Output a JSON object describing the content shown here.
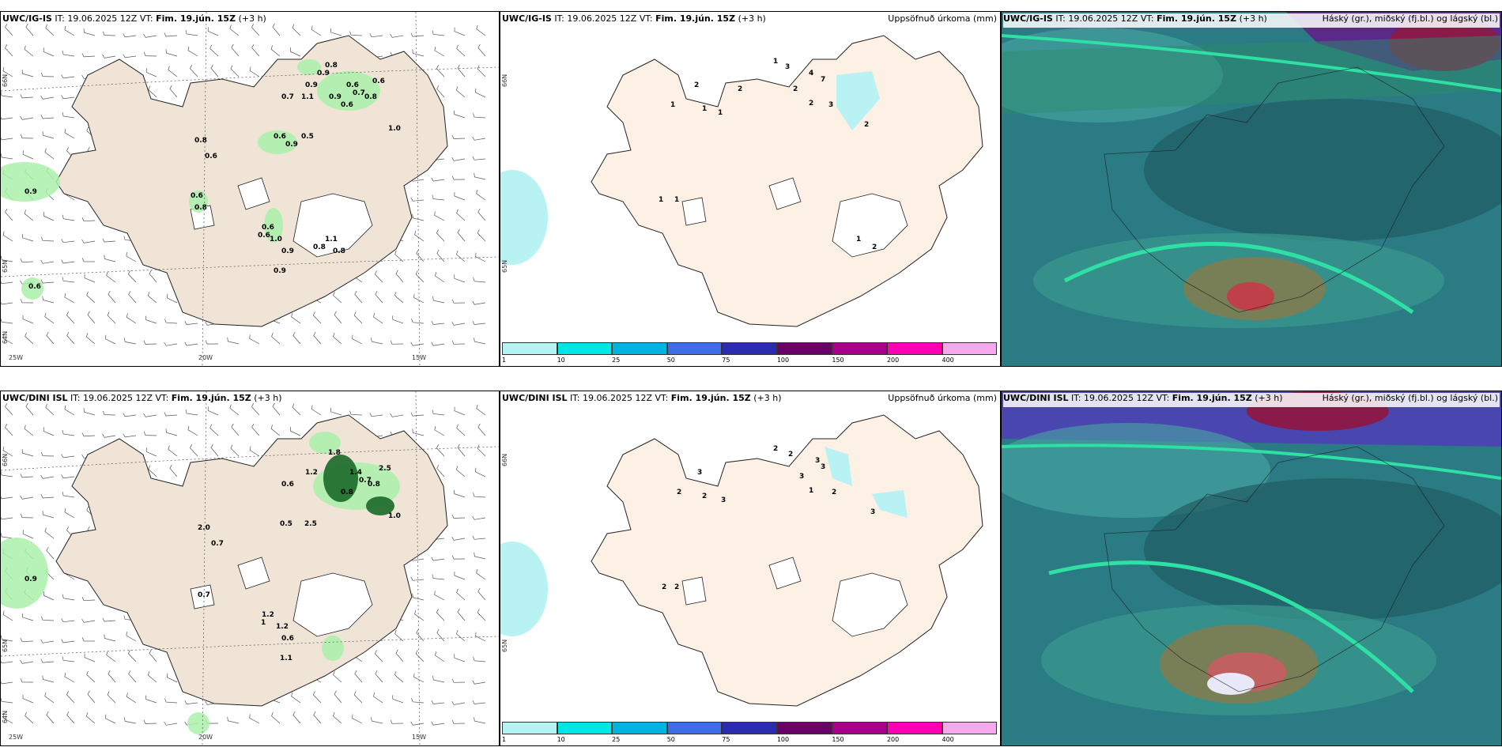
{
  "panels": [
    {
      "id": "wind-ig",
      "model": "UWC/IG-IS",
      "it": "19.06.2025 12Z",
      "vt": "Fim. 19.jún. 15Z",
      "plus": "(+3 h)",
      "right_title": "",
      "values": [
        "0.9",
        "0.8",
        "0.6",
        "0.7",
        "0.5",
        "0.6",
        "0.9",
        "0.6",
        "0.7",
        "0.6",
        "0.8",
        "0.6",
        "1.0",
        "0.8",
        "0.9",
        "0.6",
        "0.6",
        "1.0",
        "0.9",
        "0.8",
        "0.6",
        "1.1",
        "0.8",
        "0.8",
        "0.6",
        "1.1",
        "0.9",
        "0.9",
        "0.9"
      ],
      "axis": [
        "66N",
        "65N",
        "64N",
        "25W",
        "20W",
        "15W"
      ]
    },
    {
      "id": "precip-ig",
      "model": "UWC/IG-IS",
      "it": "19.06.2025 12Z",
      "vt": "Fim. 19.jún. 15Z",
      "plus": "(+3 h)",
      "right_title": "Uppsöfnuð úrkoma (mm)",
      "values": [
        "1",
        "3",
        "4",
        "7",
        "2",
        "2",
        "2",
        "3",
        "1",
        "1",
        "1",
        "2",
        "1",
        "1",
        "1",
        "2",
        "2"
      ],
      "axis": [
        "66N",
        "65N"
      ]
    },
    {
      "id": "cloud-ig",
      "model": "UWC/IG-IS",
      "it": "19.06.2025 12Z",
      "vt": "Fim. 19.jún. 15Z",
      "plus": "(+3 h)",
      "right_title": "Háský (gr.), miðský (fj.bl.) og lágský (bl.)"
    },
    {
      "id": "wind-dini",
      "model": "UWC/DINI ISL",
      "it": "19.06.2025 12Z",
      "vt": "Fim. 19.jún. 15Z",
      "plus": "(+3 h)",
      "right_title": "",
      "values": [
        "0.9",
        "2.0",
        "0.7",
        "0.6",
        "2.5",
        "0.5",
        "1.2",
        "1.4",
        "0.7",
        "0.8",
        "0.8",
        "2.5",
        "1.0",
        "1.8",
        "1.1",
        "1.2",
        "1",
        "1.2",
        "0.6",
        "0.7"
      ],
      "axis": [
        "66N",
        "65N",
        "64N",
        "25W",
        "20W",
        "15W"
      ]
    },
    {
      "id": "precip-dini",
      "model": "UWC/DINI ISL",
      "it": "19.06.2025 12Z",
      "vt": "Fim. 19.jún. 15Z",
      "plus": "(+3 h)",
      "right_title": "Uppsöfnuð úrkoma (mm)",
      "values": [
        "2",
        "2",
        "3",
        "3",
        "3",
        "3",
        "1",
        "2",
        "2",
        "2",
        "3",
        "3",
        "2",
        "2"
      ],
      "axis": [
        "66N",
        "65N"
      ]
    },
    {
      "id": "cloud-dini",
      "model": "UWC/DINI ISL",
      "it": "19.06.2025 12Z",
      "vt": "Fim. 19.jún. 15Z",
      "plus": "(+3 h)",
      "right_title": "Háský (gr.), miðský (fj.bl.) og lágský (bl.)"
    }
  ],
  "colorbar": {
    "labels": [
      "1",
      "10",
      "25",
      "50",
      "75",
      "100",
      "150",
      "200",
      "400"
    ],
    "colors": [
      "#b5f4f4",
      "#00e6e6",
      "#00b4e0",
      "#3c6ee8",
      "#2c2cb0",
      "#6a006a",
      "#a8008c",
      "#ff00b4",
      "#f6a8ee"
    ]
  },
  "colors": {
    "land": "#efe4d6",
    "land_precip": "#fdf0e4",
    "ocean_precip": "#b8f2f2",
    "green": "#aaf0aa"
  }
}
